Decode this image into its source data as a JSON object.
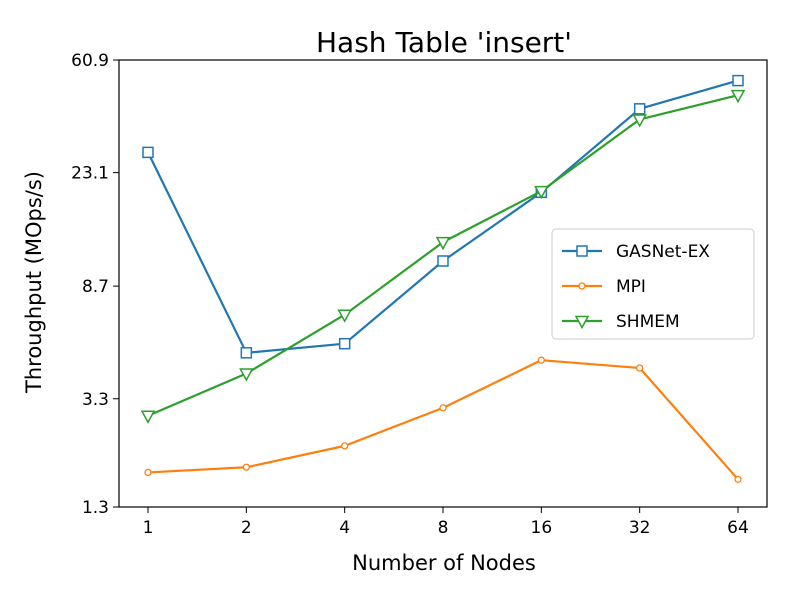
{
  "chart_data": {
    "type": "line",
    "title": "Hash Table 'insert'",
    "xlabel": "Number of Nodes",
    "ylabel": "Throughput (MOps/s)",
    "x_scale": "log2",
    "y_scale": "log",
    "categories": [
      "1",
      "2",
      "4",
      "8",
      "16",
      "32",
      "64"
    ],
    "ylim": [
      1.3,
      60.9
    ],
    "yticks": [
      "1.3",
      "3.3",
      "8.7",
      "23.1",
      "60.9"
    ],
    "grid": false,
    "legend_position": "center-right",
    "series": [
      {
        "name": "GASNet-EX",
        "color": "#1f77b4",
        "marker": "square",
        "values": [
          27.5,
          4.9,
          5.3,
          10.8,
          19.5,
          40.0,
          51.0
        ]
      },
      {
        "name": "MPI",
        "color": "#ff7f0e",
        "marker": "circle",
        "values": [
          1.75,
          1.83,
          2.2,
          3.05,
          4.6,
          4.3,
          1.65
        ]
      },
      {
        "name": "SHMEM",
        "color": "#2ca02c",
        "marker": "triangle-down",
        "values": [
          2.85,
          4.1,
          6.8,
          12.7,
          19.7,
          36.5,
          45.0
        ]
      }
    ]
  }
}
